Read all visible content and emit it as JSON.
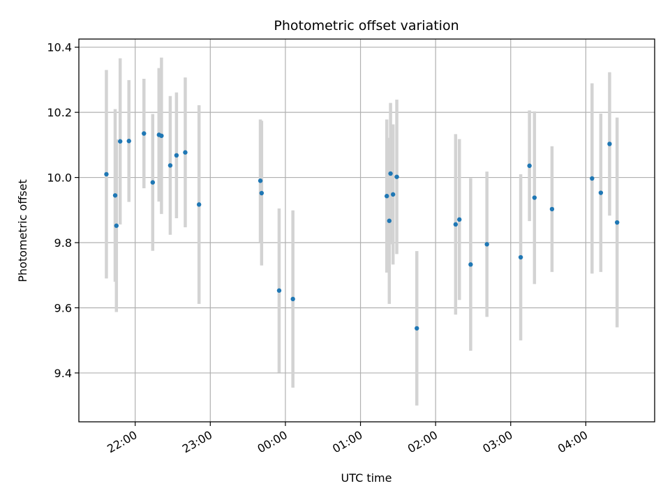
{
  "chart_data": {
    "type": "scatter",
    "title": "Photometric offset variation",
    "xlabel": "UTC time",
    "ylabel": "Photometric offset",
    "x_unit": "UTC clock time (hours past 00:00; times before midnight shown as negative)",
    "xlim": [
      "21:15",
      "04:55"
    ],
    "ylim": [
      9.25,
      10.425
    ],
    "grid": true,
    "x_ticks": [
      {
        "label": "22:00",
        "value": "22:00"
      },
      {
        "label": "23:00",
        "value": "23:00"
      },
      {
        "label": "00:00",
        "value": "00:00"
      },
      {
        "label": "01:00",
        "value": "01:00"
      },
      {
        "label": "02:00",
        "value": "02:00"
      },
      {
        "label": "03:00",
        "value": "03:00"
      },
      {
        "label": "04:00",
        "value": "04:00"
      }
    ],
    "y_ticks": [
      {
        "label": "9.4",
        "value": 9.4
      },
      {
        "label": "9.6",
        "value": 9.6
      },
      {
        "label": "9.8",
        "value": 9.8
      },
      {
        "label": "10.0",
        "value": 10.0
      },
      {
        "label": "10.2",
        "value": 10.2
      },
      {
        "label": "10.4",
        "value": 10.4
      }
    ],
    "marker_color": "#1f77b4",
    "errorbar_color": "#d3d3d3",
    "points": [
      {
        "time": "21:37",
        "y": 10.01,
        "err": 0.32
      },
      {
        "time": "21:44",
        "y": 9.945,
        "err": 0.265
      },
      {
        "time": "21:45",
        "y": 9.852,
        "err": 0.265
      },
      {
        "time": "21:48",
        "y": 10.111,
        "err": 0.255
      },
      {
        "time": "21:55",
        "y": 10.112,
        "err": 0.187
      },
      {
        "time": "22:07",
        "y": 10.135,
        "err": 0.168
      },
      {
        "time": "22:14",
        "y": 9.985,
        "err": 0.21
      },
      {
        "time": "22:19",
        "y": 10.131,
        "err": 0.205
      },
      {
        "time": "22:21",
        "y": 10.128,
        "err": 0.24
      },
      {
        "time": "22:28",
        "y": 10.037,
        "err": 0.213
      },
      {
        "time": "22:33",
        "y": 10.068,
        "err": 0.193
      },
      {
        "time": "22:40",
        "y": 10.077,
        "err": 0.23
      },
      {
        "time": "22:51",
        "y": 9.917,
        "err": 0.305
      },
      {
        "time": "23:40",
        "y": 9.99,
        "err": 0.188
      },
      {
        "time": "23:41",
        "y": 9.952,
        "err": 0.222
      },
      {
        "time": "23:55",
        "y": 9.653,
        "err": 0.252
      },
      {
        "time": "00:06",
        "y": 9.627,
        "err": 0.272
      },
      {
        "time": "01:21",
        "y": 9.943,
        "err": 0.235
      },
      {
        "time": "01:23",
        "y": 9.867,
        "err": 0.255
      },
      {
        "time": "01:24",
        "y": 10.012,
        "err": 0.217
      },
      {
        "time": "01:26",
        "y": 9.948,
        "err": 0.215
      },
      {
        "time": "01:29",
        "y": 10.002,
        "err": 0.237
      },
      {
        "time": "01:45",
        "y": 9.537,
        "err": 0.237
      },
      {
        "time": "02:16",
        "y": 9.856,
        "err": 0.277
      },
      {
        "time": "02:19",
        "y": 9.871,
        "err": 0.247
      },
      {
        "time": "02:28",
        "y": 9.733,
        "err": 0.265
      },
      {
        "time": "02:41",
        "y": 9.795,
        "err": 0.223
      },
      {
        "time": "03:08",
        "y": 9.755,
        "err": 0.255
      },
      {
        "time": "03:15",
        "y": 10.036,
        "err": 0.17
      },
      {
        "time": "03:19",
        "y": 9.938,
        "err": 0.265
      },
      {
        "time": "03:33",
        "y": 9.903,
        "err": 0.193
      },
      {
        "time": "04:05",
        "y": 9.997,
        "err": 0.292
      },
      {
        "time": "04:12",
        "y": 9.953,
        "err": 0.243
      },
      {
        "time": "04:19",
        "y": 10.103,
        "err": 0.22
      },
      {
        "time": "04:25",
        "y": 9.862,
        "err": 0.322
      }
    ]
  }
}
